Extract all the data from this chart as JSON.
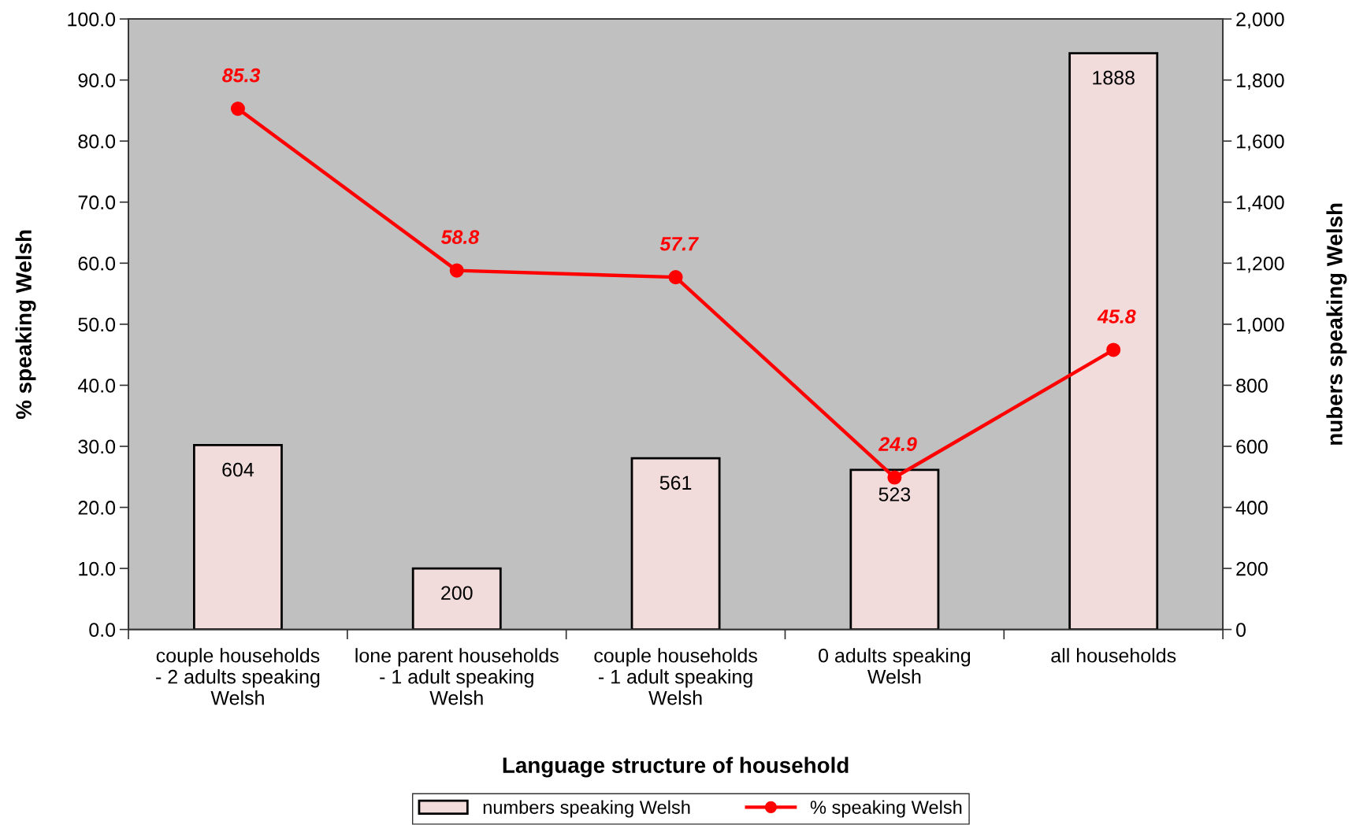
{
  "chart_data": {
    "type": "bar",
    "xlabel": "Language structure of household",
    "ylabel": "% speaking Welsh",
    "y2label": "nubers speaking Welsh",
    "categories": [
      "couple households\n- 2 adults speaking\nWelsh",
      "lone parent households\n- 1 adult speaking\nWelsh",
      "couple households\n- 1 adult speaking\nWelsh",
      "0 adults speaking\nWelsh",
      "all households"
    ],
    "series": [
      {
        "name": "numbers speaking Welsh",
        "axis": "y2",
        "color": "#f2dcdb",
        "values": [
          604,
          200,
          561,
          523,
          1888
        ]
      },
      {
        "name": "% speaking Welsh",
        "type": "line",
        "color": "#ff0000",
        "values": [
          85.3,
          58.8,
          57.7,
          24.9,
          45.8
        ]
      }
    ],
    "ylim": [
      0,
      100
    ],
    "yticks": [
      {
        "value": 0,
        "label": "0.0"
      },
      {
        "value": 10,
        "label": "10.0"
      },
      {
        "value": 20,
        "label": "20.0"
      },
      {
        "value": 30,
        "label": "30.0"
      },
      {
        "value": 40,
        "label": "40.0"
      },
      {
        "value": 50,
        "label": "50.0"
      },
      {
        "value": 60,
        "label": "60.0"
      },
      {
        "value": 70,
        "label": "70.0"
      },
      {
        "value": 80,
        "label": "80.0"
      },
      {
        "value": 90,
        "label": "90.0"
      },
      {
        "value": 100,
        "label": "100.0"
      }
    ],
    "y2lim": [
      0,
      2000
    ],
    "y2ticks": [
      0,
      200,
      400,
      600,
      800,
      {
        "value": 1000,
        "label": "1,000"
      },
      {
        "value": 1200,
        "label": "1,200"
      },
      {
        "value": 1400,
        "label": "1,400"
      },
      {
        "value": 1600,
        "label": "1,600"
      },
      {
        "value": 1800,
        "label": "1,800"
      },
      {
        "value": 2000,
        "label": "2,000"
      }
    ],
    "data_labels": true,
    "legend": "bottom",
    "marker": "circle",
    "line_style": "solid"
  }
}
